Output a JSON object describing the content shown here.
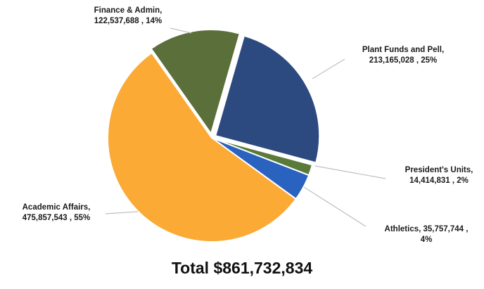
{
  "chart_data": {
    "type": "pie",
    "title": "",
    "total_label": "Total $861,732,834",
    "slices": [
      {
        "name": "Plant Funds and Pell",
        "value": 213165028,
        "value_label": "213,165,028",
        "percent": "25%",
        "color": "#2d4a80"
      },
      {
        "name": "President's Units",
        "value": 14414831,
        "value_label": "14,414,831",
        "percent": "2%",
        "color": "#5a7a3a"
      },
      {
        "name": "Athletics",
        "value": 35757744,
        "value_label": "35,757,744",
        "percent": "4%",
        "color": "#2a62c0"
      },
      {
        "name": "Academic Affairs",
        "value": 475857543,
        "value_label": "475,857,543",
        "percent": "55%",
        "color": "#fbaa35"
      },
      {
        "name": "Finance & Admin",
        "value": 122537688,
        "value_label": "122,537,688",
        "percent": "14%",
        "color": "#5a6f3a"
      }
    ]
  }
}
